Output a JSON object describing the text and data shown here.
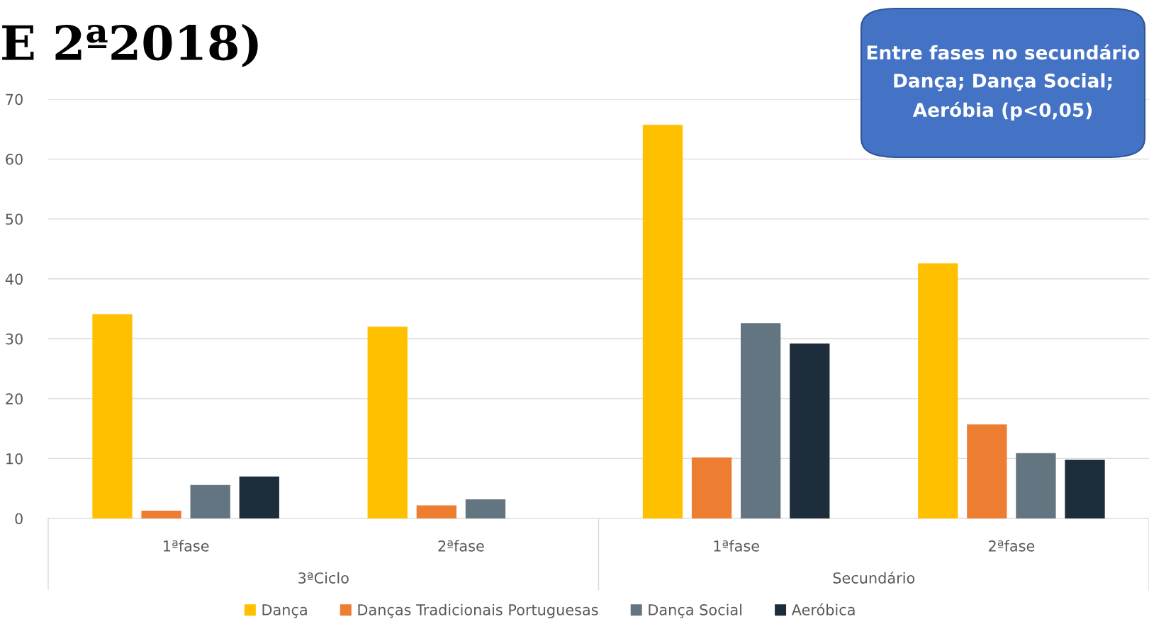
{
  "chart_data": {
    "type": "bar",
    "title": "E 2ª2018)",
    "categories": [
      "1ªfase",
      "2ªfase",
      "1ªfase",
      "2ªfase"
    ],
    "series": [
      {
        "name": "Dança",
        "color": "#ffc000",
        "values": [
          34.1,
          32.0,
          65.7,
          42.6
        ]
      },
      {
        "name": "Danças Tradicionais Portuguesas",
        "color": "#ed7d31",
        "values": [
          1.3,
          2.2,
          10.2,
          15.7
        ]
      },
      {
        "name": "Dança Social",
        "color": "#637580",
        "values": [
          5.6,
          3.2,
          32.6,
          10.9
        ]
      },
      {
        "name": "Aeróbica",
        "color": "#1e2d3b",
        "values": [
          7.0,
          0,
          29.2,
          9.8
        ]
      }
    ],
    "ylim": [
      0,
      70
    ],
    "yticks": [
      0,
      10,
      20,
      30,
      40,
      50,
      60,
      70
    ],
    "grid": "y",
    "legend": "bottom",
    "annotations": [
      "3ªCiclo",
      "Secundário",
      "Entre fases no secundário\nDança; Dança Social;\nAeróbia (p<0,05)"
    ]
  }
}
